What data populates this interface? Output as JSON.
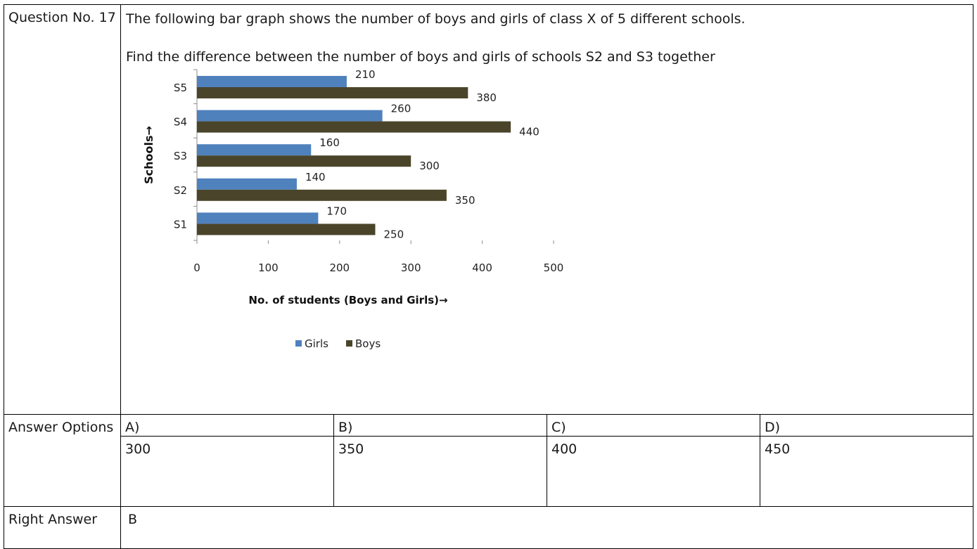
{
  "question": {
    "label": "Question No. 17",
    "text_line1": "The following bar graph shows the number of boys and girls of class X of 5 different schools.",
    "text_line2": "Find the difference between the number of boys and girls of schools S2 and S3 together"
  },
  "answer_options": {
    "label": "Answer Options",
    "options": [
      {
        "letter": "A)",
        "value": "300"
      },
      {
        "letter": "B)",
        "value": "350"
      },
      {
        "letter": "C)",
        "value": "400"
      },
      {
        "letter": "D)",
        "value": "450"
      }
    ]
  },
  "right_answer": {
    "label": "Right Answer",
    "value": "B"
  },
  "chart_data": {
    "type": "bar",
    "orientation": "horizontal",
    "categories": [
      "S1",
      "S2",
      "S3",
      "S4",
      "S5"
    ],
    "series": [
      {
        "name": "Girls",
        "values": [
          170,
          140,
          160,
          260,
          210
        ],
        "color": "#4F81BD"
      },
      {
        "name": "Boys",
        "values": [
          250,
          350,
          300,
          440,
          380
        ],
        "color": "#4A452A"
      }
    ],
    "xlabel": "No. of students (Boys and Girls)→",
    "ylabel": "Schools→",
    "xlim": [
      0,
      500
    ],
    "xticks": [
      0,
      100,
      200,
      300,
      400,
      500
    ],
    "legend": "bottom",
    "grid": false
  }
}
